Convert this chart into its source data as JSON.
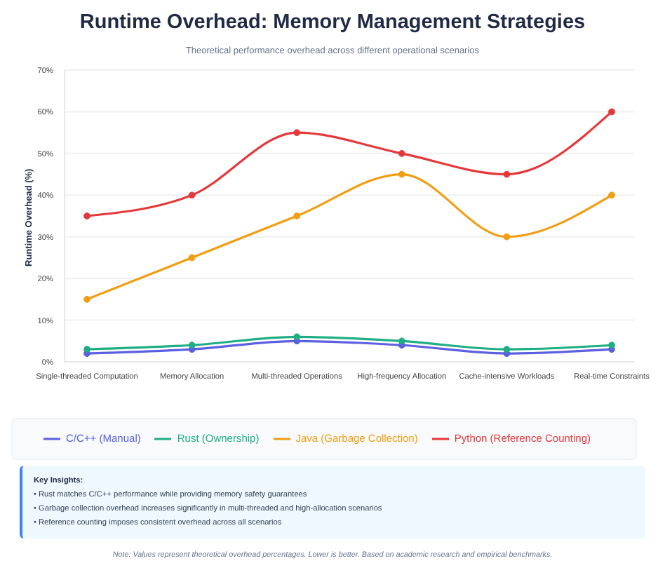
{
  "chart_data": {
    "type": "line",
    "title": "Runtime Overhead: Memory Management Strategies",
    "subtitle": "Theoretical performance overhead across different operational scenarios",
    "ylabel": "Runtime Overhead (%)",
    "categories": [
      "Single-threaded Computation",
      "Memory Allocation",
      "Multi-threaded Operations",
      "High-frequency Allocation",
      "Cache-intensive Workloads",
      "Real-time Constraints"
    ],
    "series": [
      {
        "name": "C/C++ (Manual)",
        "color": "#5b5fe0",
        "values": [
          2,
          3,
          5,
          4,
          2,
          3
        ]
      },
      {
        "name": "Rust (Ownership)",
        "color": "#1fae84",
        "values": [
          3,
          4,
          6,
          5,
          3,
          4
        ]
      },
      {
        "name": "Java (Garbage Collection)",
        "color": "#f29d12",
        "values": [
          15,
          25,
          35,
          45,
          30,
          40
        ]
      },
      {
        "name": "Python (Reference Counting)",
        "color": "#e5383b",
        "values": [
          35,
          40,
          55,
          50,
          45,
          60
        ]
      }
    ],
    "ylim": [
      0,
      70
    ],
    "yticks": [
      {
        "value": 0,
        "label": "0%"
      },
      {
        "value": 10,
        "label": "10%"
      },
      {
        "value": 20,
        "label": "20%"
      },
      {
        "value": 30,
        "label": "30%"
      },
      {
        "value": 40,
        "label": "40%"
      },
      {
        "value": 50,
        "label": "50%"
      },
      {
        "value": 60,
        "label": "60%"
      },
      {
        "value": 70,
        "label": "70%"
      }
    ],
    "grid": "y",
    "legend": "bottom",
    "marker": "circle",
    "line_style": "solid",
    "annotations": [
      "Key Insights:",
      "• Rust matches C/C++ performance while providing memory safety guarantees",
      "• Garbage collection overhead increases significantly in multi-threaded and high-allocation scenarios",
      "• Reference counting imposes consistent overhead across all scenarios",
      "Note: Values represent theoretical overhead percentages. Lower is better. Based on academic research and empirical benchmarks."
    ]
  }
}
